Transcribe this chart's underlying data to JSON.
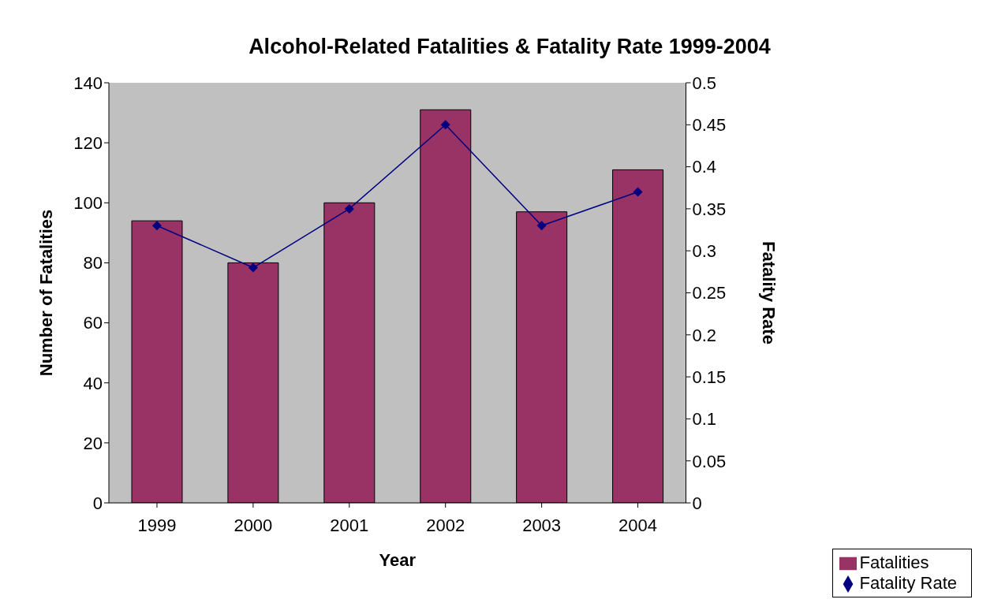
{
  "chart_data": {
    "type": "bar",
    "title": "Alcohol-Related Fatalities & Fatality Rate 1999-2004",
    "xlabel": "Year",
    "ylabel": "Number of Fatalities",
    "y2label": "Fatality Rate",
    "categories": [
      "1999",
      "2000",
      "2001",
      "2002",
      "2003",
      "2004"
    ],
    "series": [
      {
        "name": "Fatalities",
        "color": "#993366",
        "values": [
          94,
          80,
          100,
          131,
          97,
          111
        ]
      },
      {
        "name": "Fatality Rate",
        "type": "line",
        "axis": "y2",
        "color": "#000080",
        "values": [
          0.33,
          0.28,
          0.35,
          0.45,
          0.33,
          0.37
        ]
      }
    ],
    "ylim": [
      0,
      140
    ],
    "yticks": [
      0,
      20,
      40,
      60,
      80,
      100,
      120,
      140
    ],
    "y2lim": [
      0,
      0.5
    ],
    "y2ticks": [
      0,
      0.05,
      0.1,
      0.15,
      0.2,
      0.25,
      0.3,
      0.35,
      0.4,
      0.45,
      0.5
    ],
    "marker": "diamond",
    "legend": "bottom right"
  }
}
